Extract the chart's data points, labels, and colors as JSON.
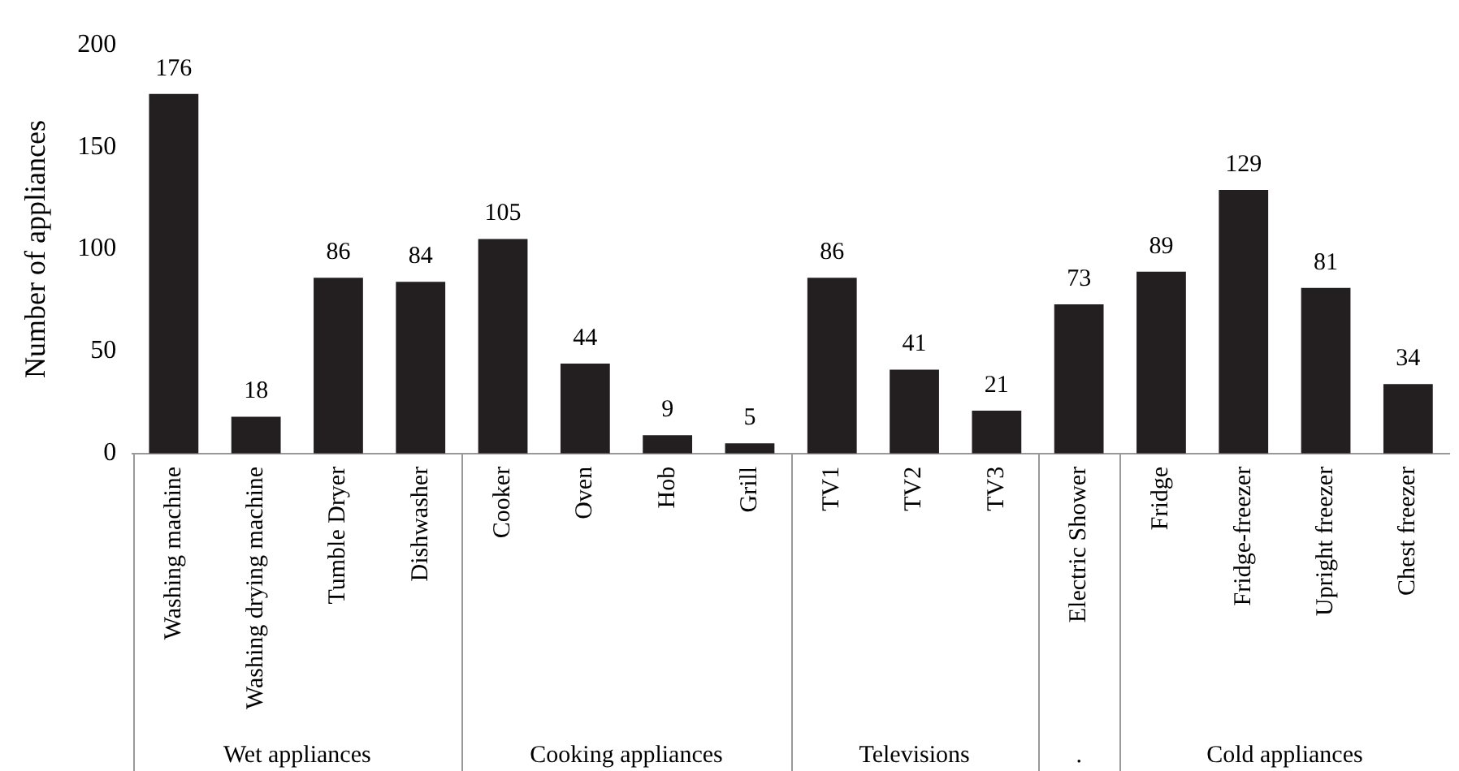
{
  "chart_data": {
    "type": "bar",
    "ylabel": "Number of appliances",
    "categories": [
      "Washing machine",
      "Washing drying machine",
      "Tumble Dryer",
      "Dishwasher",
      "Cooker",
      "Oven",
      "Hob",
      "Grill",
      "TV1",
      "TV2",
      "TV3",
      "Electric Shower",
      "Fridge",
      "Fridge-freezer",
      "Upright freezer",
      "Chest freezer"
    ],
    "values": [
      176,
      18,
      86,
      84,
      105,
      44,
      9,
      5,
      86,
      41,
      21,
      73,
      89,
      129,
      81,
      34
    ],
    "color": "#231f20",
    "ylim": [
      0,
      200
    ],
    "yticks": [
      0,
      50,
      100,
      150,
      200
    ],
    "grid": false,
    "legend": false,
    "data_labels": true,
    "annotations": [
      "Wet appliances",
      "Cooking appliances",
      "Televisions",
      ".",
      "Cold appliances"
    ]
  }
}
